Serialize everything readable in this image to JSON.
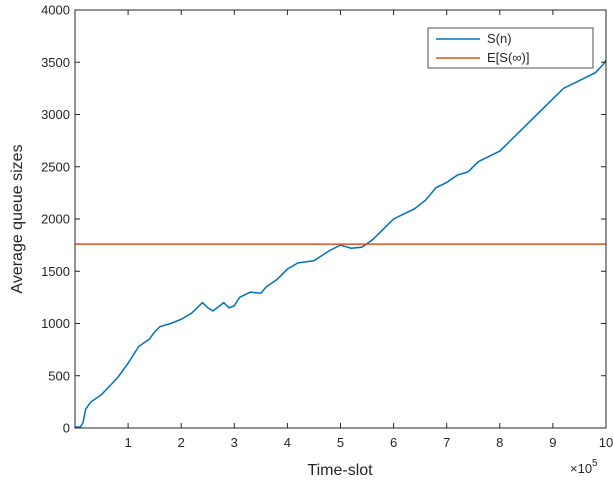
{
  "chart_data": {
    "type": "line",
    "xlabel": "Time-slot",
    "ylabel": "Average queue sizes",
    "x_multiplier_base": "×10",
    "x_multiplier_exp": "5",
    "xlim": [
      0,
      10
    ],
    "ylim": [
      0,
      4000
    ],
    "xticks": [
      1,
      2,
      3,
      4,
      5,
      6,
      7,
      8,
      9,
      10
    ],
    "yticks": [
      0,
      500,
      1000,
      1500,
      2000,
      2500,
      3000,
      3500,
      4000
    ],
    "grid": false,
    "legend_position": "top-right",
    "series": [
      {
        "name": "S(n)",
        "color": "#0072BD",
        "x": [
          0,
          0.1,
          0.15,
          0.2,
          0.3,
          0.5,
          0.8,
          1.0,
          1.2,
          1.4,
          1.5,
          1.6,
          1.8,
          2.0,
          2.2,
          2.4,
          2.5,
          2.6,
          2.8,
          2.9,
          3.0,
          3.1,
          3.3,
          3.5,
          3.6,
          3.8,
          4.0,
          4.2,
          4.5,
          4.8,
          5.0,
          5.2,
          5.4,
          5.6,
          5.8,
          6.0,
          6.2,
          6.4,
          6.6,
          6.8,
          7.0,
          7.2,
          7.4,
          7.6,
          7.8,
          8.0,
          8.2,
          8.4,
          8.6,
          8.8,
          9.0,
          9.2,
          9.4,
          9.6,
          9.8,
          9.95,
          10.0
        ],
        "y": [
          10,
          10,
          50,
          180,
          250,
          320,
          480,
          620,
          780,
          850,
          920,
          970,
          1000,
          1040,
          1100,
          1200,
          1150,
          1120,
          1200,
          1150,
          1170,
          1250,
          1300,
          1290,
          1350,
          1420,
          1520,
          1580,
          1600,
          1700,
          1750,
          1720,
          1730,
          1800,
          1900,
          2000,
          2050,
          2100,
          2180,
          2300,
          2350,
          2420,
          2450,
          2550,
          2600,
          2650,
          2750,
          2850,
          2950,
          3050,
          3150,
          3250,
          3300,
          3350,
          3400,
          3480,
          3520
        ]
      },
      {
        "name": "E[S(∞)]",
        "color": "#D95319",
        "x": [
          0,
          10
        ],
        "y": [
          1760,
          1760
        ]
      }
    ]
  }
}
